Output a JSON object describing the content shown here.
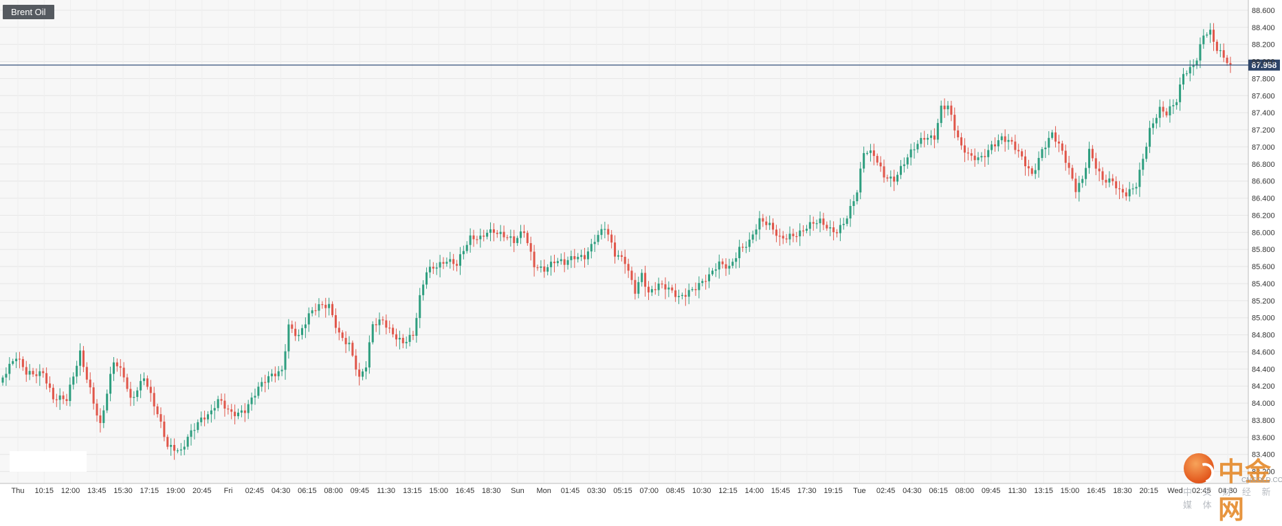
{
  "symbol_label": "Brent Oil",
  "watermark": {
    "title": "中金网",
    "domain": "CNGOLD.COM.CN",
    "subtitle": "中 文 财 经 新 媒 体"
  },
  "colors": {
    "up": "#2e9e7f",
    "down": "#e0564a",
    "grid": "#e6e6e6",
    "plot_bg": "#f7f7f7",
    "price_line": "#34507a",
    "axis_text": "#333333"
  },
  "chart_data": {
    "type": "candlestick",
    "title": "",
    "ylim": [
      83.06,
      88.72
    ],
    "y_ticks": [
      "83.200",
      "83.400",
      "83.600",
      "83.800",
      "84.000",
      "84.200",
      "84.400",
      "84.600",
      "84.800",
      "85.000",
      "85.200",
      "85.400",
      "85.600",
      "85.800",
      "86.000",
      "86.200",
      "86.400",
      "86.600",
      "86.800",
      "87.000",
      "87.200",
      "87.400",
      "87.600",
      "87.800",
      "88.000",
      "88.200",
      "88.400",
      "88.600"
    ],
    "x_ticks": [
      "Thu",
      "10:15",
      "12:00",
      "13:45",
      "15:30",
      "17:15",
      "19:00",
      "20:45",
      "Fri",
      "02:45",
      "04:30",
      "06:15",
      "08:00",
      "09:45",
      "11:30",
      "13:15",
      "15:00",
      "16:45",
      "18:30",
      "Sun",
      "Mon",
      "01:45",
      "03:30",
      "05:15",
      "07:00",
      "08:45",
      "10:30",
      "12:15",
      "14:00",
      "15:45",
      "17:30",
      "19:15",
      "Tue",
      "02:45",
      "04:30",
      "06:15",
      "08:00",
      "09:45",
      "11:30",
      "13:15",
      "15:00",
      "16:45",
      "18:30",
      "20:15",
      "Wed",
      "02:45",
      "04:30"
    ],
    "current_price": "87.958",
    "grid": true,
    "anchors": [
      [
        0,
        84.3
      ],
      [
        4,
        84.5
      ],
      [
        7,
        84.35
      ],
      [
        12,
        84.4
      ],
      [
        15,
        84.05
      ],
      [
        19,
        84.0
      ],
      [
        23,
        84.6
      ],
      [
        26,
        84.2
      ],
      [
        29,
        83.75
      ],
      [
        33,
        84.45
      ],
      [
        36,
        84.3
      ],
      [
        38,
        84.05
      ],
      [
        42,
        84.35
      ],
      [
        46,
        83.85
      ],
      [
        49,
        83.45
      ],
      [
        53,
        83.45
      ],
      [
        55,
        83.65
      ],
      [
        58,
        83.8
      ],
      [
        62,
        83.85
      ],
      [
        64,
        84.0
      ],
      [
        68,
        83.9
      ],
      [
        72,
        83.95
      ],
      [
        76,
        84.15
      ],
      [
        80,
        84.3
      ],
      [
        83,
        84.4
      ],
      [
        85,
        84.95
      ],
      [
        88,
        84.8
      ],
      [
        91,
        85.0
      ],
      [
        94,
        85.1
      ],
      [
        97,
        85.15
      ],
      [
        100,
        84.85
      ],
      [
        103,
        84.7
      ],
      [
        106,
        84.25
      ],
      [
        108,
        84.4
      ],
      [
        110,
        84.9
      ],
      [
        113,
        85.0
      ],
      [
        116,
        84.85
      ],
      [
        119,
        84.7
      ],
      [
        122,
        84.75
      ],
      [
        124,
        85.2
      ],
      [
        126,
        85.55
      ],
      [
        129,
        85.65
      ],
      [
        132,
        85.7
      ],
      [
        135,
        85.6
      ],
      [
        137,
        85.75
      ],
      [
        139,
        85.9
      ],
      [
        142,
        85.95
      ],
      [
        144,
        86.05
      ],
      [
        146,
        86.05
      ],
      [
        149,
        85.95
      ],
      [
        152,
        85.85
      ],
      [
        155,
        86.0
      ],
      [
        158,
        85.65
      ],
      [
        161,
        85.6
      ],
      [
        164,
        85.65
      ],
      [
        167,
        85.6
      ],
      [
        170,
        85.7
      ],
      [
        173,
        85.75
      ],
      [
        176,
        85.95
      ],
      [
        179,
        86.05
      ],
      [
        182,
        85.7
      ],
      [
        185,
        85.65
      ],
      [
        188,
        85.35
      ],
      [
        190,
        85.55
      ],
      [
        192,
        85.3
      ],
      [
        195,
        85.35
      ],
      [
        198,
        85.3
      ],
      [
        201,
        85.25
      ],
      [
        204,
        85.35
      ],
      [
        207,
        85.4
      ],
      [
        210,
        85.45
      ],
      [
        213,
        85.6
      ],
      [
        216,
        85.6
      ],
      [
        219,
        85.85
      ],
      [
        222,
        85.9
      ],
      [
        225,
        86.1
      ],
      [
        228,
        86.05
      ],
      [
        231,
        85.95
      ],
      [
        234,
        86.0
      ],
      [
        237,
        86.0
      ],
      [
        240,
        86.05
      ],
      [
        243,
        86.1
      ],
      [
        246,
        86.05
      ],
      [
        248,
        86.05
      ],
      [
        251,
        86.2
      ],
      [
        254,
        86.45
      ],
      [
        256,
        86.9
      ],
      [
        259,
        86.9
      ],
      [
        262,
        86.7
      ],
      [
        265,
        86.65
      ],
      [
        268,
        86.8
      ],
      [
        271,
        86.95
      ],
      [
        274,
        87.1
      ],
      [
        277,
        87.15
      ],
      [
        279,
        87.5
      ],
      [
        281,
        87.5
      ],
      [
        283,
        87.2
      ],
      [
        285,
        86.95
      ],
      [
        288,
        86.85
      ],
      [
        291,
        86.9
      ],
      [
        294,
        87.05
      ],
      [
        297,
        87.1
      ],
      [
        300,
        87.0
      ],
      [
        303,
        86.85
      ],
      [
        306,
        86.7
      ],
      [
        309,
        87.0
      ],
      [
        312,
        87.15
      ],
      [
        315,
        86.9
      ],
      [
        317,
        86.7
      ],
      [
        319,
        86.5
      ],
      [
        321,
        86.65
      ],
      [
        323,
        87.0
      ],
      [
        325,
        86.8
      ],
      [
        327,
        86.6
      ],
      [
        330,
        86.55
      ],
      [
        332,
        86.45
      ],
      [
        334,
        86.45
      ],
      [
        337,
        86.6
      ],
      [
        339,
        86.9
      ],
      [
        341,
        87.2
      ],
      [
        344,
        87.4
      ],
      [
        346,
        87.35
      ],
      [
        349,
        87.55
      ],
      [
        351,
        87.9
      ],
      [
        353,
        87.95
      ],
      [
        355,
        88.05
      ],
      [
        357,
        88.3
      ],
      [
        359,
        88.3
      ],
      [
        361,
        88.1
      ],
      [
        363,
        88.05
      ],
      [
        365,
        87.96
      ]
    ]
  }
}
